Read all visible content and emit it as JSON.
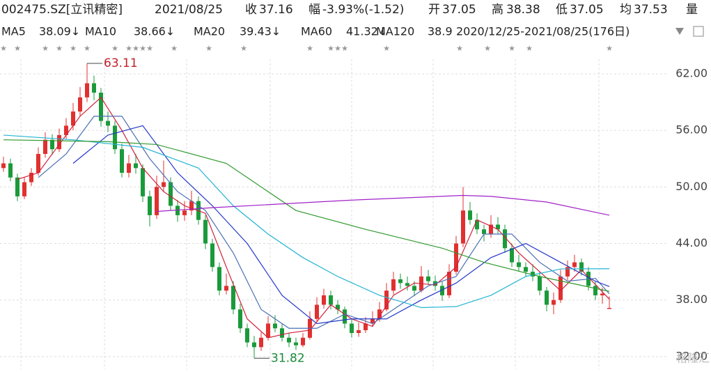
{
  "header": {
    "code": "002475.SZ[立讯精密]",
    "date": "2021/08/25",
    "fields": [
      {
        "label": "收",
        "value": "37.16"
      },
      {
        "label": "幅",
        "value": "-3.93%(-1.52)"
      },
      {
        "label": "开",
        "value": "37.05"
      },
      {
        "label": "高",
        "value": "38.38"
      },
      {
        "label": "低",
        "value": "37.05"
      },
      {
        "label": "均",
        "value": "37.53"
      },
      {
        "label": "量",
        "value": ""
      }
    ]
  },
  "range_label": "2020/12/25-2021/08/25(176日)",
  "watermark": "格隆汇",
  "chart_data": {
    "type": "candlestick",
    "ylim": [
      30.66,
      63.55
    ],
    "yticks": [
      {
        "value": 62,
        "label": "62.00"
      },
      {
        "value": 56,
        "label": "56.00"
      },
      {
        "value": 50,
        "label": "50.00"
      },
      {
        "value": 44,
        "label": "44.00"
      },
      {
        "value": 38,
        "label": "38.00"
      },
      {
        "value": 32,
        "label": "32.00"
      }
    ],
    "grid": true,
    "up_color": "#e0302f",
    "down_color": "#1a9a3a",
    "candles": [
      [
        52.0,
        53.2,
        51.6,
        52.5
      ],
      [
        52.5,
        53.0,
        50.6,
        51
      ],
      [
        51,
        51.4,
        48.5,
        49
      ],
      [
        49,
        51.0,
        48.7,
        50.5
      ],
      [
        50.5,
        52.0,
        50.1,
        51.5
      ],
      [
        51.5,
        54.2,
        51.2,
        53.5
      ],
      [
        53.5,
        55.8,
        53.1,
        55
      ],
      [
        55,
        55.6,
        53.4,
        54
      ],
      [
        54,
        56.2,
        53.7,
        55.5
      ],
      [
        55.5,
        57.3,
        55.1,
        56.5
      ],
      [
        56.5,
        58.9,
        56.0,
        58
      ],
      [
        58,
        60.6,
        57.5,
        59.5
      ],
      [
        59.5,
        63.11,
        59.0,
        61
      ],
      [
        61,
        61.8,
        59.2,
        60
      ],
      [
        60,
        60.5,
        56.4,
        57
      ],
      [
        57,
        58.0,
        55.8,
        56.5
      ],
      [
        56.5,
        57.0,
        53.5,
        54
      ],
      [
        54,
        54.6,
        51.0,
        51.5
      ],
      [
        51.5,
        53.4,
        51.0,
        52.5
      ],
      [
        52.5,
        53.5,
        51.4,
        52
      ],
      [
        52,
        52.4,
        48.4,
        49
      ],
      [
        49,
        49.6,
        45.8,
        47
      ],
      [
        47,
        51.2,
        46.6,
        50
      ],
      [
        50,
        52.8,
        49.5,
        50.5
      ],
      [
        50.5,
        51.0,
        47.5,
        48
      ],
      [
        48,
        48.6,
        46.3,
        47
      ],
      [
        47,
        48.5,
        46.4,
        47.5
      ],
      [
        47.5,
        49.6,
        47.0,
        48.5
      ],
      [
        48.5,
        49.0,
        46.0,
        46.5
      ],
      [
        46.5,
        47.0,
        43.4,
        44
      ],
      [
        44,
        44.5,
        41.0,
        41.5
      ],
      [
        41.5,
        42.0,
        38.5,
        39
      ],
      [
        39,
        40.8,
        38.6,
        39.5
      ],
      [
        39.5,
        40.0,
        36.5,
        37
      ],
      [
        37,
        37.6,
        34.5,
        35
      ],
      [
        35,
        35.5,
        33.0,
        33.5
      ],
      [
        33.5,
        34.2,
        31.82,
        33
      ],
      [
        33,
        34.6,
        32.6,
        34
      ],
      [
        34,
        36.3,
        33.7,
        35.5
      ],
      [
        35.5,
        36.4,
        34.6,
        35
      ],
      [
        35,
        35.5,
        33.6,
        34
      ],
      [
        34,
        34.5,
        33.0,
        33.5
      ],
      [
        33.5,
        34.0,
        32.7,
        33.2
      ],
      [
        33.2,
        34.5,
        33.0,
        34
      ],
      [
        34,
        36.8,
        33.8,
        36
      ],
      [
        36,
        38.3,
        35.7,
        37.5
      ],
      [
        37.5,
        39.2,
        37.1,
        38.5
      ],
      [
        38.5,
        39.0,
        37.0,
        37.5
      ],
      [
        37.5,
        38.0,
        36.5,
        37
      ],
      [
        37,
        37.3,
        35.0,
        35.5
      ],
      [
        35.5,
        36.0,
        34.0,
        34.5
      ],
      [
        34.5,
        35.6,
        34.1,
        34.8
      ],
      [
        34.8,
        36.2,
        34.5,
        35.5
      ],
      [
        35.5,
        36.8,
        35.2,
        36
      ],
      [
        36,
        37.8,
        35.7,
        37
      ],
      [
        37,
        39.8,
        36.8,
        39
      ],
      [
        39,
        41.0,
        38.6,
        40.2
      ],
      [
        40.2,
        40.8,
        39.2,
        39.8
      ],
      [
        39.8,
        40.5,
        39.0,
        39.5
      ],
      [
        39.5,
        40.0,
        38.4,
        39
      ],
      [
        39,
        41.6,
        38.8,
        40.5
      ],
      [
        40.5,
        41.2,
        39.6,
        40
      ],
      [
        40,
        40.6,
        39.0,
        39.5
      ],
      [
        39.5,
        40.0,
        37.9,
        38.5
      ],
      [
        38.5,
        41.8,
        38.2,
        41
      ],
      [
        41,
        44.8,
        40.7,
        44
      ],
      [
        44,
        50.0,
        43.6,
        47.5
      ],
      [
        47.5,
        48.4,
        46.0,
        46.5
      ],
      [
        46.5,
        47.2,
        45.0,
        45.5
      ],
      [
        45.5,
        46.0,
        44.2,
        45
      ],
      [
        45,
        47.0,
        44.6,
        46
      ],
      [
        46,
        46.8,
        45.0,
        45.5
      ],
      [
        45.5,
        46.0,
        43.0,
        43.5
      ],
      [
        43.5,
        44.0,
        41.5,
        42
      ],
      [
        42,
        42.8,
        41.0,
        41.5
      ],
      [
        41.5,
        42.0,
        40.5,
        41
      ],
      [
        41,
        41.8,
        40.0,
        40.5
      ],
      [
        40.5,
        41.0,
        38.5,
        39
      ],
      [
        39,
        39.4,
        36.8,
        37.5
      ],
      [
        37.5,
        38.8,
        36.5,
        38
      ],
      [
        38,
        41.2,
        37.7,
        40.5
      ],
      [
        40.5,
        42.2,
        40.1,
        41.5
      ],
      [
        41.5,
        42.8,
        41.0,
        42
      ],
      [
        42,
        42.4,
        40.6,
        41
      ],
      [
        41,
        41.5,
        39.0,
        39.5
      ],
      [
        39.5,
        40.0,
        38.0,
        38.5
      ],
      [
        38.5,
        39.3,
        37.6,
        38.68
      ],
      [
        37.05,
        38.38,
        37.05,
        37.16
      ]
    ],
    "series": [
      {
        "name": "MA5",
        "last_label": "38.09↓",
        "color": "#d0203a",
        "x": [
          2,
          5,
          8,
          11,
          14,
          17,
          20,
          23,
          26,
          29,
          32,
          35,
          38,
          41,
          44,
          47,
          50,
          53,
          56,
          59,
          62,
          65,
          68,
          71,
          74,
          77,
          80,
          83,
          87
        ],
        "values": [
          50.8,
          51.5,
          54.5,
          57.5,
          59.5,
          56,
          52,
          49.5,
          48,
          47.2,
          41.5,
          36,
          34,
          34.5,
          34.8,
          37.5,
          36,
          35.2,
          38.5,
          39.8,
          39.6,
          41.5,
          46.5,
          45.5,
          43,
          41,
          39,
          41.2,
          38.09
        ]
      },
      {
        "name": "MA10",
        "last_label": "38.66↓",
        "color": "#4a6fb5",
        "x": [
          5,
          9,
          13,
          17,
          21,
          25,
          29,
          33,
          37,
          41,
          45,
          49,
          53,
          57,
          61,
          65,
          69,
          73,
          77,
          81,
          85,
          87
        ],
        "values": [
          51,
          53.5,
          57.5,
          57.5,
          53,
          49.5,
          47.5,
          43,
          37,
          35,
          35,
          36.5,
          35.5,
          37.5,
          39.5,
          40.5,
          45,
          45,
          42,
          40,
          40.3,
          38.66
        ]
      },
      {
        "name": "MA20",
        "last_label": "39.43↓",
        "color": "#2437c8",
        "x": [
          10,
          15,
          20,
          25,
          30,
          35,
          40,
          45,
          50,
          55,
          60,
          65,
          70,
          75,
          80,
          85,
          87
        ],
        "values": [
          52.5,
          55.5,
          56.5,
          51.5,
          48,
          44,
          38.5,
          35.5,
          36,
          36,
          38,
          39.8,
          42.5,
          44,
          42,
          40,
          39.43
        ]
      },
      {
        "name": "MA60",
        "last_label": "41.32↓",
        "color": "#22b4d4",
        "x": [
          0,
          10,
          20,
          28,
          33,
          38,
          43,
          48,
          54,
          60,
          65,
          70,
          75,
          80,
          87
        ],
        "values": [
          55.5,
          55,
          54.2,
          52,
          48,
          45,
          42.5,
          40.5,
          38.5,
          37.2,
          37.3,
          38.5,
          40.5,
          41.3,
          41.32
        ]
      },
      {
        "name": "MA120",
        "last_label": "38.9",
        "color": "#2f9a2f",
        "x": [
          0,
          15,
          22,
          32,
          42,
          52,
          63,
          69,
          77,
          87
        ],
        "values": [
          55,
          54.8,
          54.5,
          52.5,
          47.5,
          45.5,
          43.5,
          42,
          40.5,
          38.92
        ]
      },
      {
        "color": "#a020c8",
        "x": [
          22,
          30,
          50,
          66,
          70,
          78,
          87
        ],
        "values": [
          47.4,
          47.8,
          48.6,
          49.1,
          49,
          48.4,
          47
        ]
      }
    ],
    "annotations": [
      {
        "text": "63.11",
        "candle": 12
      },
      {
        "text": "31.82",
        "candle": 36
      }
    ]
  }
}
